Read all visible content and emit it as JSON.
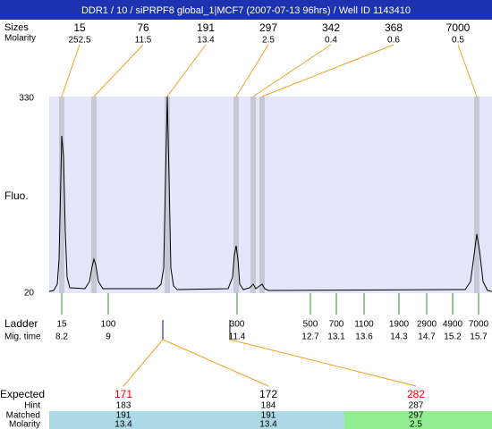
{
  "title": "DDR1 / 10 / siPRPF8 global_1|MCF7 (2007-07-13 96hrs) / Well ID 1143410",
  "peaks": {
    "size_label": "Sizes",
    "molarity_label": "Molarity",
    "sizes": [
      15,
      76,
      191,
      297,
      342,
      368,
      7000
    ],
    "molarity": [
      252.5,
      11.5,
      13.4,
      2.5,
      0.4,
      0.6,
      0.5
    ]
  },
  "y_axis": {
    "label": "Fluo.",
    "ticks": [
      330,
      20
    ]
  },
  "ladder": {
    "label": "Ladder",
    "time_label": "Mig. time",
    "sizes": [
      15,
      100,
      300,
      500,
      700,
      1100,
      1900,
      2900,
      4900,
      7000
    ],
    "times": [
      8.2,
      9,
      11.4,
      12.7,
      13.1,
      13.6,
      14.3,
      14.7,
      15.2,
      15.7
    ]
  },
  "expected": {
    "label": "Expected",
    "hint_label": "Hint",
    "matched_label": "Matched",
    "molarity_label": "Molarity",
    "expected": [
      171,
      172,
      282
    ],
    "colors": [
      "#e00000",
      "#000000",
      "#e00000"
    ],
    "hint": [
      183,
      184,
      287
    ],
    "matched": [
      191,
      191,
      297
    ],
    "molarity": [
      13.4,
      13.4,
      2.5
    ]
  }
}
